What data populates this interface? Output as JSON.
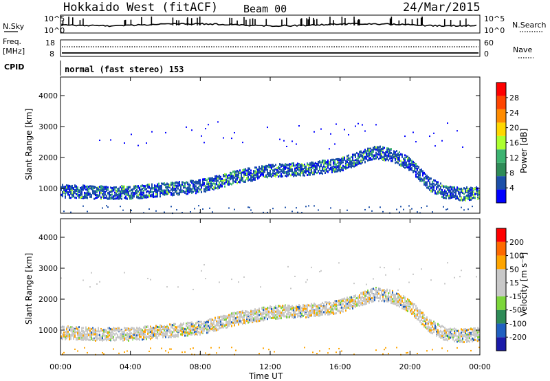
{
  "header": {
    "station": "Hokkaido West (fitACF)",
    "beam": "Beam 00",
    "date": "24/Mar/2015"
  },
  "noise_panel": {
    "left_label": "N.Sky",
    "right_label": "N.Search",
    "left_ticks": [
      "10^5",
      "10^0"
    ],
    "right_ticks": [
      "10^5",
      "10^0"
    ]
  },
  "freq_panel": {
    "left_label_1": "Freq.",
    "left_label_2": "[MHz]",
    "right_label": "Nave",
    "left_ticks": [
      "18",
      "8"
    ],
    "right_ticks": [
      "60",
      "0"
    ]
  },
  "cpid_panel": {
    "label": "CPID",
    "value": "normal (fast stereo) 153"
  },
  "colors": {
    "power_scale": [
      "#0000ff",
      "#1b4fa8",
      "#2e8b57",
      "#3cb371",
      "#adff2f",
      "#ffd700",
      "#ff8c00",
      "#ff4500",
      "#ff0000"
    ],
    "velocity_scale": [
      "#1a1aa8",
      "#2060c0",
      "#2e8b57",
      "#7cd63b",
      "#c8c8c8",
      "#c8c8c8",
      "#ffa500",
      "#ff6a00",
      "#ff0000"
    ]
  },
  "chart_data": [
    {
      "type": "heatmap",
      "name": "power",
      "ylabel": "Slant Range [km]",
      "yticks": [
        "1000",
        "2000",
        "3000",
        "4000"
      ],
      "ylim": [
        200,
        4600
      ],
      "xlim": [
        0,
        24
      ],
      "colorbar_label": "Power [dB]",
      "colorbar_ticks": [
        "4",
        "8",
        "12",
        "16",
        "20",
        "24",
        "28"
      ],
      "colorbar_range": [
        0,
        30
      ],
      "echo_band_center_km": {
        "x": [
          0,
          2,
          4,
          6,
          8,
          10,
          12,
          14,
          16,
          17,
          18,
          19,
          20,
          21,
          22,
          23,
          24
        ],
        "y": [
          950,
          900,
          900,
          1000,
          1100,
          1400,
          1600,
          1650,
          1800,
          2000,
          2200,
          2100,
          1800,
          1200,
          900,
          850,
          900
        ]
      }
    },
    {
      "type": "heatmap",
      "name": "velocity",
      "ylabel": "Slant Range [km]",
      "xlabel": "Time UT",
      "xticks": [
        "00:00",
        "04:00",
        "08:00",
        "12:00",
        "16:00",
        "20:00",
        "00:00"
      ],
      "yticks": [
        "1000",
        "2000",
        "3000",
        "4000"
      ],
      "ylim": [
        200,
        4600
      ],
      "xlim": [
        0,
        24
      ],
      "colorbar_label": "Velocity [m s⁻¹]",
      "colorbar_ticks": [
        "200",
        "100",
        "50",
        "15",
        "-15",
        "-50",
        "-100",
        "-200"
      ],
      "colorbar_range": [
        -250,
        250
      ],
      "echo_band_center_km": {
        "x": [
          0,
          2,
          4,
          6,
          8,
          10,
          12,
          14,
          16,
          17,
          18,
          19,
          20,
          21,
          22,
          23,
          24
        ],
        "y": [
          950,
          900,
          900,
          1000,
          1100,
          1400,
          1600,
          1650,
          1800,
          2000,
          2200,
          2100,
          1800,
          1200,
          900,
          850,
          900
        ]
      }
    }
  ]
}
